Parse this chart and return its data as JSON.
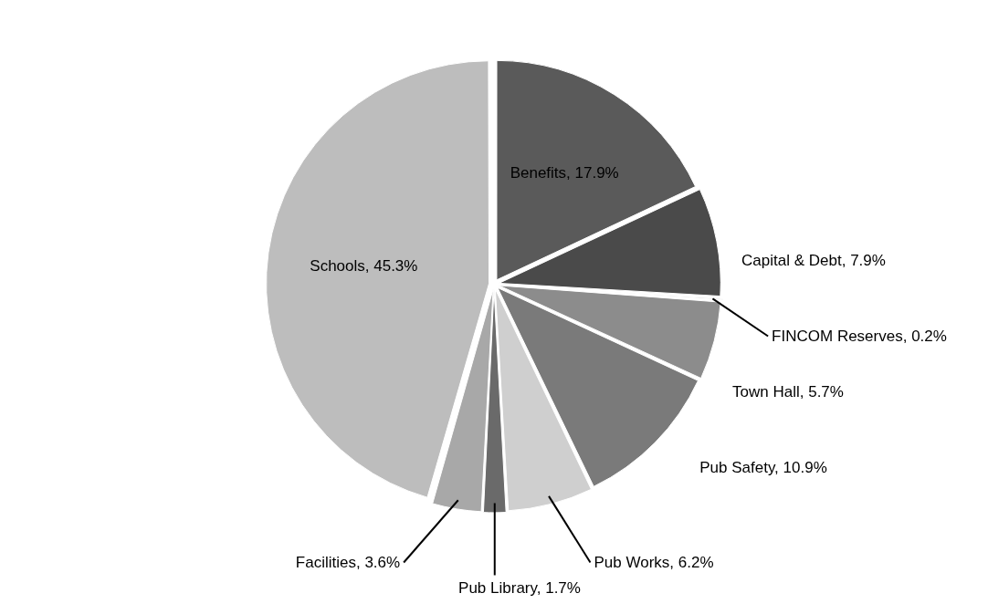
{
  "chart_data": {
    "type": "pie",
    "categories": [
      "Benefits",
      "Capital & Debt",
      "FINCOM Reserves",
      "Town Hall",
      "Pub Safety",
      "Pub Works",
      "Pub Library",
      "Facilities",
      "Schools"
    ],
    "values": [
      17.9,
      7.9,
      0.2,
      5.7,
      10.9,
      6.2,
      1.7,
      3.6,
      45.3
    ],
    "value_labels": [
      "17.9%",
      "7.9%",
      "0.2%",
      "5.7%",
      "10.9%",
      "6.2%",
      "1.7%",
      "3.6%",
      "45.3%"
    ],
    "colors": [
      "#5a5a5a",
      "#4a4a4a",
      "#d8d8d8",
      "#8c8c8c",
      "#7a7a7a",
      "#cfcfcf",
      "#6a6a6a",
      "#a8a8a8",
      "#bdbdbd"
    ],
    "legend": false
  }
}
